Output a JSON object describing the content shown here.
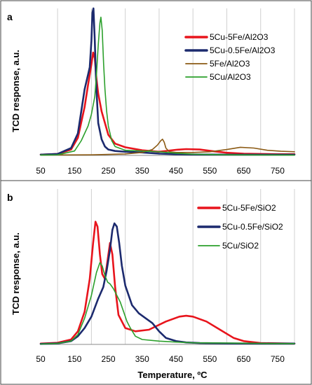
{
  "chart_data": [
    {
      "panel": "a",
      "type": "line",
      "ylabel": "TCD response, a.u.",
      "xlabel": "",
      "xlim": [
        50,
        800
      ],
      "xticks": [
        50,
        150,
        250,
        350,
        450,
        550,
        650,
        750
      ],
      "grid": "vertical",
      "legend_position": "top-right",
      "series": [
        {
          "name": "5Cu-5Fe/Al2O3",
          "color": "#e8141c",
          "x": [
            50,
            100,
            140,
            160,
            180,
            190,
            200,
            205,
            210,
            215,
            220,
            230,
            240,
            250,
            270,
            300,
            350,
            400,
            450,
            480,
            520,
            560,
            600,
            650,
            700,
            750,
            800
          ],
          "y": [
            0.005,
            0.01,
            0.04,
            0.12,
            0.33,
            0.48,
            0.62,
            0.7,
            0.66,
            0.52,
            0.42,
            0.3,
            0.22,
            0.14,
            0.08,
            0.055,
            0.035,
            0.025,
            0.038,
            0.043,
            0.04,
            0.028,
            0.018,
            0.012,
            0.01,
            0.008,
            0.008
          ]
        },
        {
          "name": "5Cu-0.5Fe/Al2O3",
          "color": "#1c2a6e",
          "x": [
            50,
            100,
            140,
            160,
            170,
            180,
            190,
            195,
            200,
            203,
            206,
            210,
            213,
            216,
            220,
            230,
            240,
            250,
            270,
            300,
            350,
            400,
            450,
            500,
            600,
            700,
            800
          ],
          "y": [
            0.005,
            0.01,
            0.05,
            0.15,
            0.3,
            0.45,
            0.55,
            0.6,
            0.78,
            0.97,
            1.0,
            0.78,
            0.55,
            0.4,
            0.22,
            0.11,
            0.06,
            0.04,
            0.03,
            0.025,
            0.02,
            0.012,
            0.008,
            0.006,
            0.005,
            0.005,
            0.005
          ]
        },
        {
          "name": "5Fe/Al2O3",
          "color": "#8b5a14",
          "x": [
            50,
            200,
            300,
            350,
            380,
            395,
            405,
            410,
            415,
            420,
            430,
            450,
            500,
            550,
            600,
            640,
            680,
            720,
            760,
            800
          ],
          "y": [
            0.003,
            0.004,
            0.01,
            0.02,
            0.04,
            0.07,
            0.1,
            0.11,
            0.09,
            0.05,
            0.025,
            0.02,
            0.02,
            0.025,
            0.04,
            0.055,
            0.05,
            0.035,
            0.028,
            0.025
          ]
        },
        {
          "name": "5Cu/Al2O3",
          "color": "#2ca02c",
          "x": [
            50,
            100,
            150,
            170,
            190,
            200,
            210,
            215,
            220,
            225,
            228,
            232,
            236,
            240,
            245,
            250,
            260,
            270,
            300,
            350,
            400,
            450,
            500,
            600,
            700,
            800
          ],
          "y": [
            0.002,
            0.004,
            0.03,
            0.1,
            0.2,
            0.28,
            0.4,
            0.55,
            0.75,
            0.9,
            0.94,
            0.85,
            0.62,
            0.45,
            0.3,
            0.2,
            0.1,
            0.06,
            0.035,
            0.03,
            0.025,
            0.015,
            0.008,
            0.004,
            0.003,
            0.002
          ]
        }
      ]
    },
    {
      "panel": "b",
      "type": "line",
      "ylabel": "TCD response, a.u.",
      "xlabel": "Temperature, ºC",
      "xlim": [
        50,
        800
      ],
      "xticks": [
        50,
        150,
        250,
        350,
        450,
        550,
        650,
        750
      ],
      "grid": "vertical",
      "legend_position": "top-right",
      "series": [
        {
          "name": "5Cu-5Fe/SiO2",
          "color": "#e8141c",
          "x": [
            50,
            100,
            140,
            160,
            180,
            195,
            205,
            212,
            218,
            225,
            232,
            240,
            248,
            255,
            262,
            270,
            280,
            300,
            330,
            370,
            420,
            460,
            480,
            500,
            540,
            580,
            620,
            650,
            700,
            800
          ],
          "y": [
            0.005,
            0.01,
            0.03,
            0.08,
            0.2,
            0.4,
            0.62,
            0.75,
            0.72,
            0.55,
            0.43,
            0.4,
            0.52,
            0.62,
            0.55,
            0.35,
            0.18,
            0.1,
            0.08,
            0.09,
            0.14,
            0.17,
            0.175,
            0.17,
            0.14,
            0.09,
            0.04,
            0.02,
            0.008,
            0.005
          ]
        },
        {
          "name": "5Cu-0.5Fe/SiO2",
          "color": "#1c2a6e",
          "x": [
            50,
            100,
            140,
            160,
            180,
            200,
            220,
            235,
            245,
            255,
            262,
            268,
            275,
            282,
            290,
            300,
            320,
            340,
            360,
            380,
            400,
            420,
            450,
            480,
            520,
            600,
            700,
            800
          ],
          "y": [
            0.003,
            0.006,
            0.02,
            0.05,
            0.1,
            0.17,
            0.28,
            0.35,
            0.45,
            0.58,
            0.7,
            0.74,
            0.72,
            0.62,
            0.48,
            0.36,
            0.24,
            0.19,
            0.16,
            0.13,
            0.08,
            0.04,
            0.02,
            0.012,
            0.008,
            0.006,
            0.005,
            0.005
          ]
        },
        {
          "name": "5Cu/SiO2",
          "color": "#2ca02c",
          "x": [
            50,
            100,
            140,
            160,
            180,
            200,
            215,
            225,
            232,
            240,
            248,
            255,
            265,
            275,
            285,
            295,
            305,
            315,
            330,
            350,
            400,
            450,
            500,
            600,
            700,
            800
          ],
          "y": [
            0.002,
            0.006,
            0.02,
            0.06,
            0.16,
            0.3,
            0.44,
            0.5,
            0.48,
            0.42,
            0.38,
            0.37,
            0.34,
            0.3,
            0.26,
            0.2,
            0.14,
            0.1,
            0.05,
            0.03,
            0.02,
            0.014,
            0.01,
            0.008,
            0.006,
            0.005
          ]
        }
      ]
    }
  ]
}
